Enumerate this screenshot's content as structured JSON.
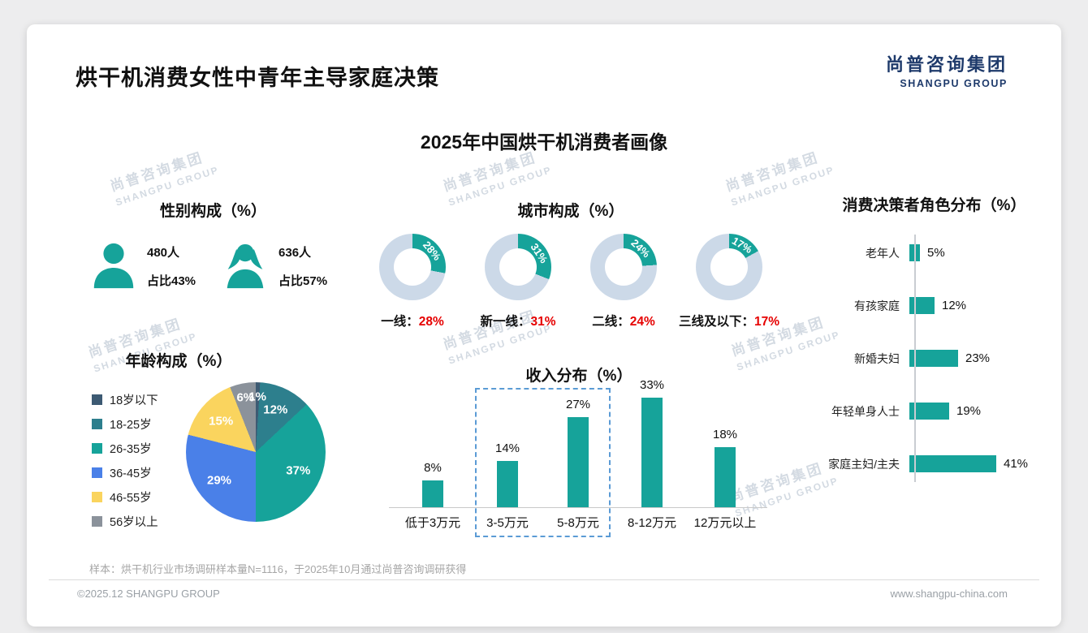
{
  "page": {
    "title": "烘干机消费女性中青年主导家庭决策",
    "logo_cn": "尚普咨询集团",
    "logo_en": "SHANGPU GROUP",
    "chart_title": "2025年中国烘干机消费者画像",
    "footnote": "样本：烘干机行业市场调研样本量N=1116，于2025年10月通过尚普咨询调研获得",
    "copyright": "©2025.12 SHANGPU GROUP",
    "website": "www.shangpu-china.com",
    "watermark_cn": "尚普咨询集团",
    "watermark_en": "SHANGPU GROUP"
  },
  "theme": {
    "teal": "#16A39A",
    "donut_rest": "#CCD9E8",
    "red": "#E60000",
    "navy": "#1E3A6B",
    "axis_gray": "#C9CDD2",
    "dashed_blue": "#5B9BD5"
  },
  "chart_data": [
    {
      "type": "pictogram",
      "title": "性别构成（%）",
      "categories": [
        "男",
        "女"
      ],
      "values": [
        43,
        57
      ],
      "counts": [
        "480人",
        "636人"
      ],
      "shares": [
        "占比43%",
        "占比57%"
      ]
    },
    {
      "type": "pie",
      "variant": "donut",
      "title": "城市构成（%）",
      "categories": [
        "一线",
        "新一线",
        "二线",
        "三线及以下"
      ],
      "values": [
        28,
        31,
        24,
        17
      ],
      "caption_separator": "："
    },
    {
      "type": "pie",
      "title": "年龄构成（%）",
      "categories": [
        "18岁以下",
        "18-25岁",
        "26-35岁",
        "36-45岁",
        "46-55岁",
        "56岁以上"
      ],
      "values": [
        1,
        12,
        37,
        29,
        15,
        6
      ],
      "colors": [
        "#3D5A73",
        "#2D7F8D",
        "#16A39A",
        "#4A80E8",
        "#FAD45E",
        "#8B929B"
      ],
      "legend_position": "left"
    },
    {
      "type": "bar",
      "title": "收入分布（%）",
      "categories": [
        "低于3万元",
        "3-5万元",
        "5-8万元",
        "8-12万元",
        "12万元以上"
      ],
      "values": [
        8,
        14,
        27,
        33,
        18
      ],
      "highlight_range": [
        "3-5万元",
        "5-8万元"
      ],
      "ylim": [
        0,
        35
      ],
      "grid": false
    },
    {
      "type": "bar",
      "orientation": "horizontal",
      "title": "消费决策者角色分布（%）",
      "categories": [
        "老年人",
        "有孩家庭",
        "新婚夫妇",
        "年轻单身人士",
        "家庭主妇/主夫"
      ],
      "values": [
        5,
        12,
        23,
        19,
        41
      ],
      "xlim": [
        0,
        45
      ],
      "grid": false
    }
  ]
}
